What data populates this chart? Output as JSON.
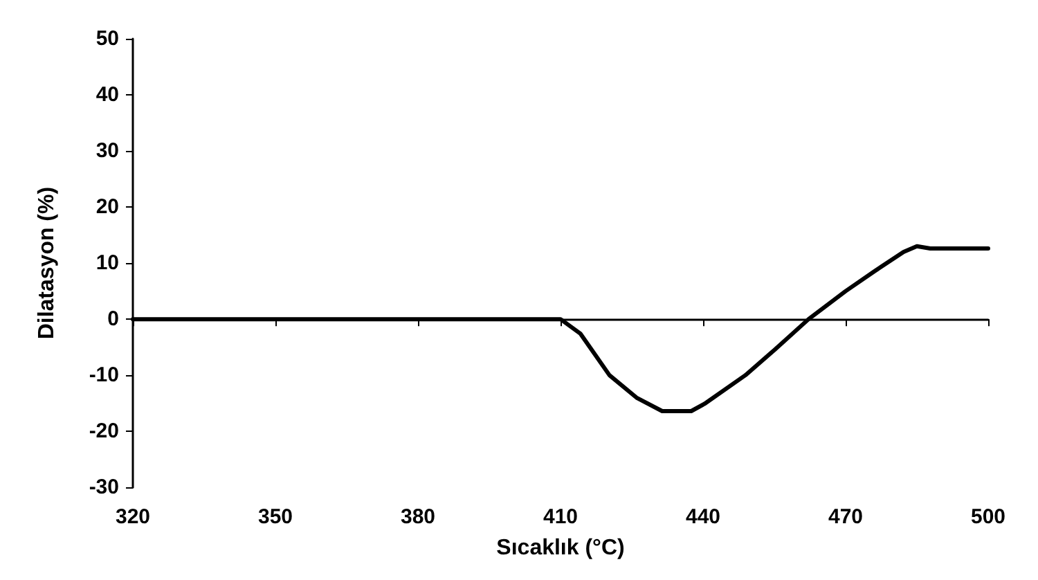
{
  "chart_data": {
    "type": "line",
    "xlabel": "Sıcaklık (°C)",
    "ylabel": "Dilatasyon (%)",
    "x": [
      320,
      350,
      380,
      406,
      410,
      414.2,
      420.3,
      426,
      431.4,
      437.5,
      440.3,
      448.9,
      455,
      462.2,
      470,
      476,
      482.2,
      485,
      487.8,
      500
    ],
    "series": [
      {
        "color": "#000000",
        "values": [
          0,
          0,
          0,
          0,
          0,
          -2.6,
          -10,
          -14,
          -16.4,
          -16.4,
          -15.1,
          -10,
          -5.5,
          0,
          5,
          8.5,
          12,
          13,
          12.6,
          12.6
        ]
      }
    ],
    "xlim": [
      320,
      500
    ],
    "xticks": [
      320,
      350,
      380,
      410,
      440,
      470,
      500
    ],
    "ylim": [
      -30,
      50
    ],
    "yticks": [
      -30,
      -20,
      -10,
      0,
      10,
      20,
      30,
      40,
      50
    ],
    "marker": "none",
    "line_style": "solid"
  }
}
